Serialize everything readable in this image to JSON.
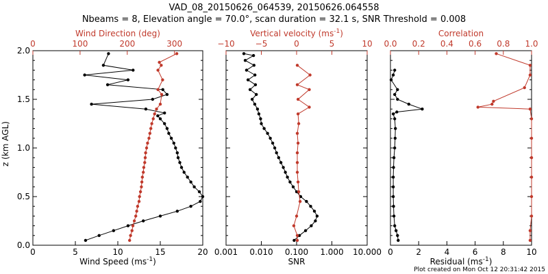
{
  "title_line1": "VAD_08_20150626_064539, 20150626.064558",
  "title_line2": "Nbeams = 8, Elevation angle = 70.0°, scan duration = 32.1 s, SNR Threshold = 0.008",
  "footer": "Plot created on Mon Oct 12 20:31:42 2015",
  "colors": {
    "primary": "#000000",
    "secondary": "#c0392b"
  },
  "ylabel": "z (km AGL)",
  "yticks": [
    "0.0",
    "0.5",
    "1.0",
    "1.5",
    "2.0"
  ],
  "chart_data": [
    {
      "type": "line",
      "panel": "wind",
      "ylabel": "z (km AGL)",
      "ylim": [
        0,
        2.0
      ],
      "bottom_axis": {
        "label": "Wind Speed (ms",
        "label_sup": "-1",
        "label_end": ")",
        "ticks": [
          "0",
          "5",
          "10",
          "15",
          "20"
        ],
        "range": [
          0,
          20
        ]
      },
      "top_axis": {
        "label": "Wind Direction (deg)",
        "ticks": [
          "0",
          "100",
          "200",
          "300"
        ],
        "range": [
          0,
          360
        ]
      },
      "series": [
        {
          "axis": "bottom",
          "color": "#000000",
          "points": [
            [
              6.2,
              0.05
            ],
            [
              7.8,
              0.1
            ],
            [
              9.5,
              0.15
            ],
            [
              11.2,
              0.2
            ],
            [
              13,
              0.25
            ],
            [
              15,
              0.3
            ],
            [
              17,
              0.35
            ],
            [
              18.6,
              0.4
            ],
            [
              19.7,
              0.45
            ],
            [
              20,
              0.5
            ],
            [
              19.6,
              0.55
            ],
            [
              19,
              0.6
            ],
            [
              18.6,
              0.65
            ],
            [
              18.2,
              0.7
            ],
            [
              17.8,
              0.75
            ],
            [
              17.5,
              0.8
            ],
            [
              17.3,
              0.85
            ],
            [
              17.1,
              0.9
            ],
            [
              17,
              0.95
            ],
            [
              16.8,
              1.0
            ],
            [
              16.6,
              1.05
            ],
            [
              16.3,
              1.1
            ],
            [
              16,
              1.15
            ],
            [
              15.8,
              1.2
            ],
            [
              15.5,
              1.25
            ],
            [
              15,
              1.3
            ],
            [
              14.7,
              1.33
            ],
            [
              15.5,
              1.36
            ],
            [
              13.3,
              1.4
            ],
            [
              6.9,
              1.45
            ],
            [
              14.1,
              1.5
            ],
            [
              15.8,
              1.55
            ],
            [
              15.3,
              1.6
            ],
            [
              8.8,
              1.65
            ],
            [
              11.2,
              1.7
            ],
            [
              6.1,
              1.75
            ],
            [
              11.8,
              1.8
            ],
            [
              8.3,
              1.85
            ],
            [
              8.9,
              1.97
            ]
          ]
        },
        {
          "axis": "top",
          "color": "#c0392b",
          "points": [
            [
              205,
              0.05
            ],
            [
              207,
              0.1
            ],
            [
              210,
              0.15
            ],
            [
              212,
              0.2
            ],
            [
              215,
              0.25
            ],
            [
              218,
              0.3
            ],
            [
              220,
              0.35
            ],
            [
              222,
              0.4
            ],
            [
              225,
              0.45
            ],
            [
              226,
              0.5
            ],
            [
              228,
              0.55
            ],
            [
              230,
              0.6
            ],
            [
              231,
              0.65
            ],
            [
              232,
              0.7
            ],
            [
              234,
              0.75
            ],
            [
              235,
              0.8
            ],
            [
              237,
              0.85
            ],
            [
              238,
              0.9
            ],
            [
              239,
              0.95
            ],
            [
              241,
              1.0
            ],
            [
              243,
              1.05
            ],
            [
              246,
              1.1
            ],
            [
              248,
              1.15
            ],
            [
              250,
              1.2
            ],
            [
              252,
              1.25
            ],
            [
              255,
              1.3
            ],
            [
              258,
              1.35
            ],
            [
              262,
              1.4
            ],
            [
              270,
              1.45
            ],
            [
              273,
              1.55
            ],
            [
              265,
              1.6
            ],
            [
              275,
              1.7
            ],
            [
              265,
              1.8
            ],
            [
              272,
              1.85
            ],
            [
              268,
              1.88
            ],
            [
              305,
              1.97
            ]
          ]
        }
      ]
    },
    {
      "type": "line",
      "panel": "snr",
      "ylim": [
        0,
        2.0
      ],
      "bottom_axis": {
        "label": "SNR",
        "scale": "log",
        "ticks": [
          "0.001",
          "0.010",
          "0.100",
          "1.000",
          "10.000"
        ],
        "range": [
          0.001,
          10
        ]
      },
      "top_axis": {
        "label": "Vertical velocity (ms",
        "label_sup": "-1",
        "label_end": ")",
        "ticks": [
          "−10",
          "−5",
          "0",
          "5",
          "10"
        ],
        "range": [
          -10,
          10
        ]
      },
      "series": [
        {
          "axis": "bottom",
          "color": "#000000",
          "points": [
            [
              0.085,
              0.05
            ],
            [
              0.12,
              0.1
            ],
            [
              0.18,
              0.15
            ],
            [
              0.26,
              0.2
            ],
            [
              0.34,
              0.25
            ],
            [
              0.38,
              0.3
            ],
            [
              0.32,
              0.35
            ],
            [
              0.25,
              0.4
            ],
            [
              0.19,
              0.45
            ],
            [
              0.13,
              0.5
            ],
            [
              0.1,
              0.55
            ],
            [
              0.08,
              0.6
            ],
            [
              0.065,
              0.65
            ],
            [
              0.055,
              0.7
            ],
            [
              0.048,
              0.75
            ],
            [
              0.042,
              0.8
            ],
            [
              0.036,
              0.85
            ],
            [
              0.031,
              0.9
            ],
            [
              0.027,
              0.95
            ],
            [
              0.024,
              1.0
            ],
            [
              0.021,
              1.05
            ],
            [
              0.018,
              1.1
            ],
            [
              0.015,
              1.15
            ],
            [
              0.012,
              1.2
            ],
            [
              0.01,
              1.25
            ],
            [
              0.0095,
              1.3
            ],
            [
              0.0085,
              1.35
            ],
            [
              0.0078,
              1.4
            ],
            [
              0.0065,
              1.45
            ],
            [
              0.0055,
              1.5
            ],
            [
              0.0072,
              1.55
            ],
            [
              0.0048,
              1.6
            ],
            [
              0.0068,
              1.65
            ],
            [
              0.0042,
              1.7
            ],
            [
              0.0066,
              1.75
            ],
            [
              0.0038,
              1.8
            ],
            [
              0.0062,
              1.85
            ],
            [
              0.0035,
              1.9
            ],
            [
              0.006,
              1.95
            ],
            [
              0.0032,
              1.97
            ]
          ]
        },
        {
          "axis": "top",
          "color": "#c0392b",
          "points": [
            [
              0.1,
              0.05
            ],
            [
              0.1,
              0.1
            ],
            [
              -0.4,
              0.2
            ],
            [
              0,
              0.3
            ],
            [
              0.5,
              0.45
            ],
            [
              0.3,
              0.55
            ],
            [
              0.2,
              0.65
            ],
            [
              0.1,
              0.75
            ],
            [
              0.1,
              0.85
            ],
            [
              0.1,
              0.95
            ],
            [
              0.2,
              1.05
            ],
            [
              0.1,
              1.15
            ],
            [
              0.3,
              1.25
            ],
            [
              0.2,
              1.35
            ],
            [
              1.8,
              1.42
            ],
            [
              0.2,
              1.5
            ],
            [
              1.8,
              1.6
            ],
            [
              0.1,
              1.65
            ],
            [
              1.9,
              1.75
            ],
            [
              0.1,
              1.85
            ]
          ]
        }
      ]
    },
    {
      "type": "line",
      "panel": "residual",
      "ylim": [
        0,
        2.0
      ],
      "bottom_axis": {
        "label": "Residual (ms",
        "label_sup": "-1",
        "label_end": ")",
        "ticks": [
          "0",
          "2",
          "4",
          "6",
          "8",
          "10"
        ],
        "range": [
          0,
          10
        ]
      },
      "top_axis": {
        "label": "Correlation",
        "ticks": [
          "0.0",
          "0.2",
          "0.4",
          "0.6",
          "0.8",
          "1.0"
        ],
        "range": [
          0,
          1
        ]
      },
      "series": [
        {
          "axis": "bottom",
          "color": "#000000",
          "points": [
            [
              0.55,
              0.05
            ],
            [
              0.5,
              0.1
            ],
            [
              0.4,
              0.15
            ],
            [
              0.3,
              0.2
            ],
            [
              0.25,
              0.3
            ],
            [
              0.22,
              0.4
            ],
            [
              0.2,
              0.5
            ],
            [
              0.2,
              0.6
            ],
            [
              0.2,
              0.7
            ],
            [
              0.22,
              0.8
            ],
            [
              0.25,
              0.9
            ],
            [
              0.3,
              1.0
            ],
            [
              0.33,
              1.1
            ],
            [
              0.35,
              1.2
            ],
            [
              0.3,
              1.3
            ],
            [
              0.2,
              1.35
            ],
            [
              0.45,
              1.37
            ],
            [
              2.25,
              1.4
            ],
            [
              1.3,
              1.45
            ],
            [
              0.5,
              1.5
            ],
            [
              0.3,
              1.55
            ],
            [
              0.5,
              1.6
            ],
            [
              0.05,
              1.7
            ],
            [
              0.2,
              1.75
            ],
            [
              0.3,
              1.8
            ]
          ]
        },
        {
          "axis": "top",
          "color": "#c0392b",
          "points": [
            [
              0.99,
              0.05
            ],
            [
              0.99,
              0.15
            ],
            [
              1.0,
              0.3
            ],
            [
              1.0,
              0.5
            ],
            [
              1.0,
              0.7
            ],
            [
              1.0,
              0.9
            ],
            [
              1.0,
              1.1
            ],
            [
              1.0,
              1.3
            ],
            [
              0.99,
              1.4
            ],
            [
              0.62,
              1.42
            ],
            [
              0.72,
              1.45
            ],
            [
              0.73,
              1.48
            ],
            [
              0.95,
              1.62
            ],
            [
              0.99,
              1.75
            ],
            [
              0.99,
              1.85
            ],
            [
              0.75,
              1.97
            ]
          ]
        }
      ]
    }
  ]
}
